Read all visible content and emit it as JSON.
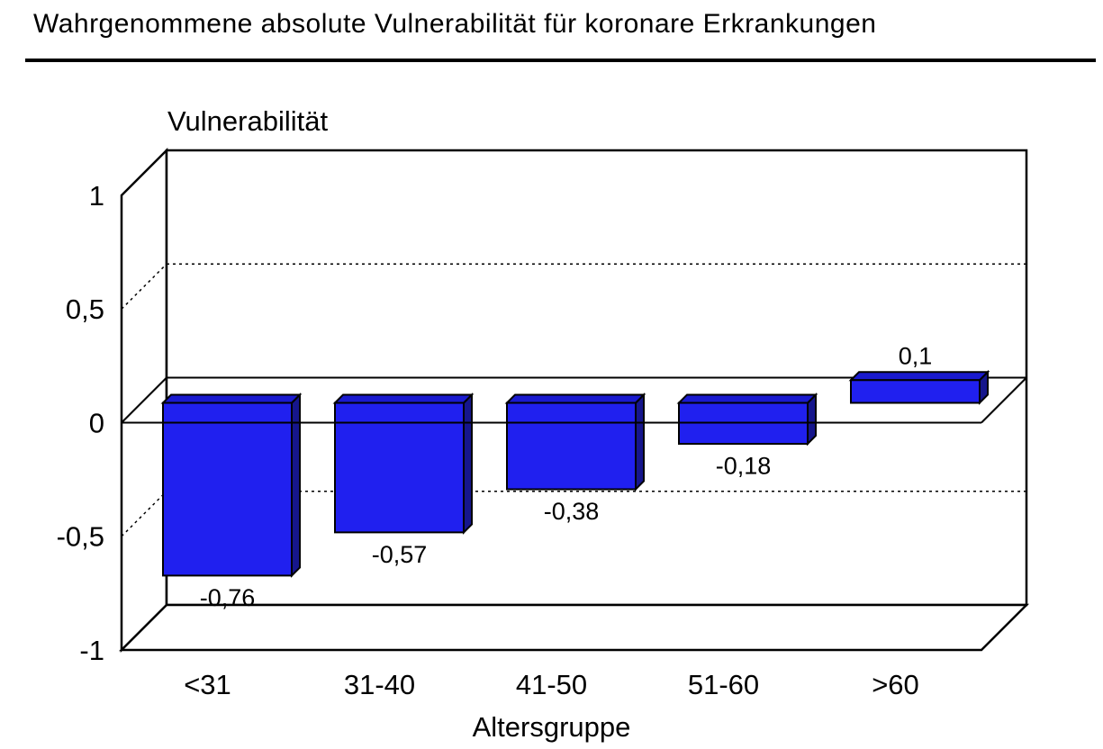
{
  "page": {
    "title": "Wahrgenommene absolute Vulnerabilität für koronare Erkrankungen"
  },
  "chart_data": {
    "type": "bar",
    "style": "3d-column",
    "title": "Wahrgenommene absolute Vulnerabilität für koronare Erkrankungen",
    "xlabel": "Altersgruppe",
    "ylabel": "Vulnerabilität",
    "categories": [
      "<31",
      "31-40",
      "41-50",
      "51-60",
      ">60"
    ],
    "values": [
      -0.76,
      -0.57,
      -0.38,
      -0.18,
      0.1
    ],
    "value_labels": [
      "-0,76",
      "-0,57",
      "-0,38",
      "-0,18",
      "0,1"
    ],
    "ylim": [
      -1,
      1
    ],
    "yticks": [
      {
        "v": 1,
        "label": "1",
        "grid": "none"
      },
      {
        "v": 0.5,
        "label": "0,5",
        "grid": "dashed"
      },
      {
        "v": 0,
        "label": "0",
        "grid": "solid"
      },
      {
        "v": -0.5,
        "label": "-0,5",
        "grid": "dashed"
      },
      {
        "v": -1,
        "label": "-1",
        "grid": "none"
      }
    ],
    "legend": "none",
    "grid": "horizontal dashed at ±0,5; solid zero line",
    "colors": {
      "bar_front": "#2020ef",
      "bar_top": "#1a1acf",
      "bar_side": "#16168c",
      "outline": "#000000",
      "wall": "#ffffff",
      "background": "#ffffff",
      "text": "#000000"
    }
  }
}
